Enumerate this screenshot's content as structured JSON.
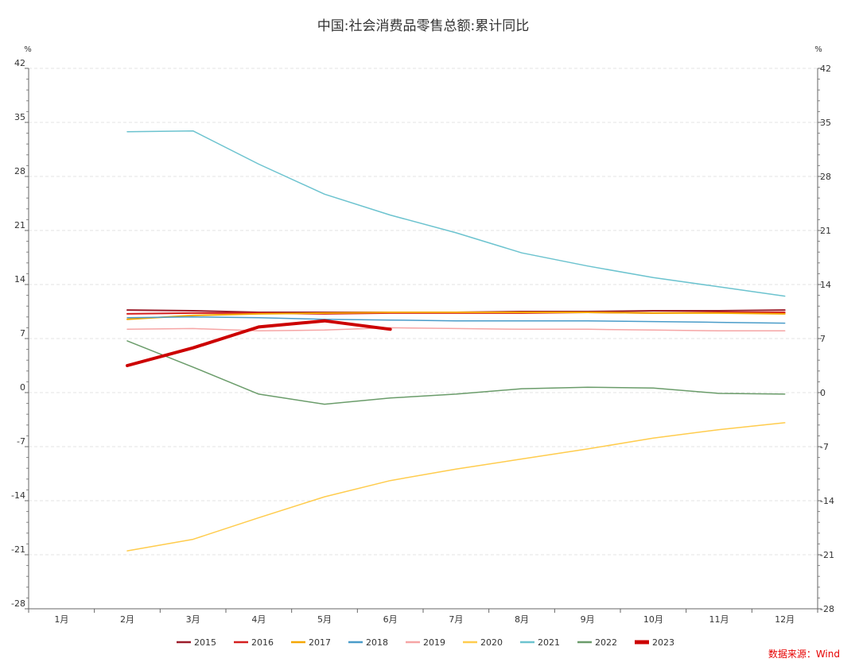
{
  "chart_data": {
    "type": "line",
    "title": "中国:社会消费品零售总额:累计同比",
    "y_unit_left": "%",
    "y_unit_right": "%",
    "categories": [
      "1月",
      "2月",
      "3月",
      "4月",
      "5月",
      "6月",
      "7月",
      "8月",
      "9月",
      "10月",
      "11月",
      "12月"
    ],
    "yticks": [
      42,
      35,
      28,
      21,
      14,
      7,
      0,
      -7,
      -14,
      -21,
      -28
    ],
    "ylim": [
      -28,
      42
    ],
    "grid": true,
    "legend_position": "bottom",
    "series": [
      {
        "name": "2015",
        "color": "#9b1c2a",
        "width": 2,
        "values": [
          null,
          10.7,
          10.6,
          10.4,
          10.4,
          10.4,
          10.4,
          10.5,
          10.5,
          10.6,
          10.6,
          10.7
        ]
      },
      {
        "name": "2016",
        "color": "#d41f1f",
        "width": 2,
        "values": [
          null,
          10.2,
          10.3,
          10.3,
          10.2,
          10.3,
          10.3,
          10.3,
          10.4,
          10.3,
          10.4,
          10.4
        ]
      },
      {
        "name": "2017",
        "color": "#f5a700",
        "width": 2,
        "values": [
          null,
          9.5,
          10.0,
          10.2,
          10.3,
          10.4,
          10.4,
          10.4,
          10.4,
          10.3,
          10.3,
          10.2
        ]
      },
      {
        "name": "2018",
        "color": "#4a9cc9",
        "width": 1.5,
        "values": [
          null,
          9.7,
          9.8,
          9.7,
          9.5,
          9.4,
          9.3,
          9.3,
          9.3,
          9.2,
          9.1,
          9.0
        ]
      },
      {
        "name": "2019",
        "color": "#f6a5a5",
        "width": 1.5,
        "values": [
          null,
          8.2,
          8.3,
          8.0,
          8.1,
          8.4,
          8.3,
          8.2,
          8.2,
          8.1,
          8.0,
          8.0
        ]
      },
      {
        "name": "2020",
        "color": "#ffcc4d",
        "width": 1.5,
        "values": [
          null,
          -20.5,
          -19.0,
          -16.2,
          -13.5,
          -11.4,
          -9.9,
          -8.6,
          -7.3,
          -5.9,
          -4.8,
          -3.9
        ]
      },
      {
        "name": "2021",
        "color": "#6cc3cf",
        "width": 1.5,
        "values": [
          null,
          33.8,
          33.9,
          29.6,
          25.7,
          23.0,
          20.7,
          18.1,
          16.4,
          14.9,
          13.7,
          12.5
        ]
      },
      {
        "name": "2022",
        "color": "#6a9c6a",
        "width": 1.5,
        "values": [
          null,
          6.7,
          3.3,
          -0.2,
          -1.5,
          -0.7,
          -0.2,
          0.5,
          0.7,
          0.6,
          -0.1,
          -0.2
        ]
      },
      {
        "name": "2023",
        "color": "#cc0000",
        "width": 4,
        "values": [
          null,
          3.5,
          5.8,
          8.5,
          9.3,
          8.2,
          null,
          null,
          null,
          null,
          null,
          null
        ]
      }
    ]
  },
  "source": "数据来源：Wind"
}
